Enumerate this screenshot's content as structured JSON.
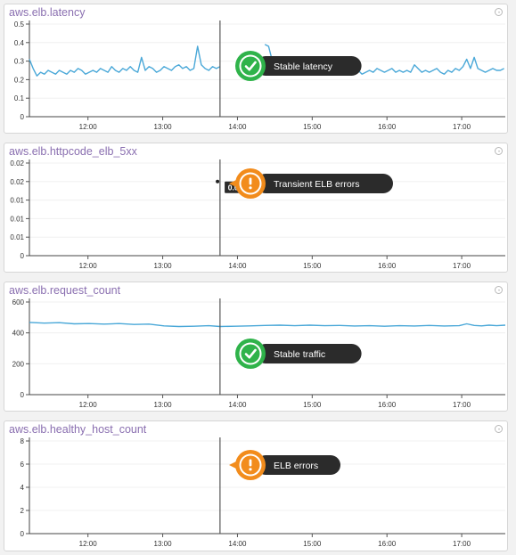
{
  "colors": {
    "series": "#4aa8d8",
    "title": "#8a6fb0",
    "ok": "#2fb34a",
    "warn": "#f28c1c",
    "callout_bg": "#2b2b2b"
  },
  "chart_data": [
    {
      "type": "line",
      "title": "aws.elb.latency",
      "x_ticks": [
        "12:00",
        "13:00",
        "14:00",
        "15:00",
        "16:00",
        "17:00"
      ],
      "y_ticks": [
        "0",
        "0.1",
        "0.2",
        "0.3",
        "0.4",
        "0.5"
      ],
      "ylim": [
        0,
        0.5
      ],
      "xlim": [
        "11:13",
        "17:35"
      ],
      "grid": true,
      "marker_time": "13:46",
      "series": [
        {
          "x": [
            "11:13",
            "11:16",
            "11:19",
            "11:22",
            "11:25",
            "11:28",
            "11:31",
            "11:34",
            "11:37",
            "11:40",
            "11:43",
            "11:46",
            "11:49",
            "11:52",
            "11:55",
            "11:58",
            "12:01",
            "12:04",
            "12:07",
            "12:10",
            "12:13",
            "12:16",
            "12:19",
            "12:22",
            "12:25",
            "12:28",
            "12:31",
            "12:34",
            "12:37",
            "12:40",
            "12:43",
            "12:46",
            "12:49",
            "12:52",
            "12:55",
            "12:58",
            "13:01",
            "13:04",
            "13:07",
            "13:10",
            "13:13",
            "13:16",
            "13:19",
            "13:22",
            "13:25",
            "13:28",
            "13:31",
            "13:34",
            "13:37",
            "13:40",
            "13:43",
            "13:46",
            "14:22",
            "14:25",
            "14:28",
            "14:31",
            "14:34",
            "14:37",
            "14:40",
            "14:43",
            "14:46",
            "14:49",
            "14:52",
            "14:55",
            "14:58",
            "15:01",
            "15:04",
            "15:07",
            "15:10",
            "15:13",
            "15:16",
            "15:19",
            "15:22",
            "15:25",
            "15:28",
            "15:31",
            "15:34",
            "15:37",
            "15:40",
            "15:43",
            "15:46",
            "15:49",
            "15:52",
            "15:55",
            "15:58",
            "16:01",
            "16:04",
            "16:07",
            "16:10",
            "16:13",
            "16:16",
            "16:19",
            "16:22",
            "16:25",
            "16:28",
            "16:31",
            "16:34",
            "16:37",
            "16:40",
            "16:43",
            "16:46",
            "16:49",
            "16:52",
            "16:55",
            "16:58",
            "17:01",
            "17:04",
            "17:07",
            "17:10",
            "17:13",
            "17:16",
            "17:19",
            "17:22",
            "17:25",
            "17:28",
            "17:31",
            "17:34"
          ],
          "values": [
            0.31,
            0.26,
            0.22,
            0.24,
            0.23,
            0.25,
            0.24,
            0.23,
            0.25,
            0.24,
            0.23,
            0.25,
            0.24,
            0.26,
            0.25,
            0.23,
            0.24,
            0.25,
            0.24,
            0.26,
            0.25,
            0.24,
            0.27,
            0.25,
            0.24,
            0.26,
            0.25,
            0.27,
            0.25,
            0.24,
            0.32,
            0.25,
            0.27,
            0.26,
            0.24,
            0.25,
            0.27,
            0.26,
            0.25,
            0.27,
            0.28,
            0.26,
            0.27,
            0.25,
            0.26,
            0.38,
            0.28,
            0.26,
            0.25,
            0.27,
            0.26,
            0.27,
            0.39,
            0.38,
            0.3,
            0.27,
            0.26,
            0.25,
            0.27,
            0.26,
            0.25,
            0.24,
            0.25,
            0.26,
            0.25,
            0.24,
            0.26,
            0.25,
            0.24,
            0.26,
            0.25,
            0.24,
            0.25,
            0.31,
            0.26,
            0.25,
            0.24,
            0.25,
            0.23,
            0.24,
            0.25,
            0.24,
            0.26,
            0.25,
            0.24,
            0.25,
            0.26,
            0.24,
            0.25,
            0.24,
            0.25,
            0.24,
            0.28,
            0.26,
            0.24,
            0.25,
            0.24,
            0.25,
            0.26,
            0.24,
            0.23,
            0.25,
            0.24,
            0.26,
            0.25,
            0.27,
            0.31,
            0.26,
            0.32,
            0.26,
            0.25,
            0.24,
            0.25,
            0.26,
            0.25,
            0.25,
            0.26
          ]
        }
      ],
      "hover_label": "",
      "callout": {
        "kind": "ok",
        "text": "Stable latency"
      }
    },
    {
      "type": "line",
      "title": "aws.elb.httpcode_elb_5xx",
      "x_ticks": [
        "12:00",
        "13:00",
        "14:00",
        "15:00",
        "16:00",
        "17:00"
      ],
      "y_ticks": [
        "0",
        "0.01",
        "0.01",
        "0.01",
        "0.02",
        "0.02"
      ],
      "ylim": [
        0,
        0.025
      ],
      "xlim": [
        "11:13",
        "17:35"
      ],
      "grid": true,
      "marker_time": "13:46",
      "series": [
        {
          "x": [
            "13:44"
          ],
          "values": [
            0.02
          ]
        }
      ],
      "hover_label": "0.02",
      "callout": {
        "kind": "warn",
        "text": "Transient ELB errors"
      }
    },
    {
      "type": "line",
      "title": "aws.elb.request_count",
      "x_ticks": [
        "12:00",
        "13:00",
        "14:00",
        "15:00",
        "16:00",
        "17:00"
      ],
      "y_ticks": [
        "0",
        "200",
        "400",
        "600"
      ],
      "ylim": [
        0,
        680
      ],
      "xlim": [
        "11:13",
        "17:35"
      ],
      "grid": true,
      "marker_time": "13:46",
      "series": [
        {
          "x": [
            "11:13",
            "11:25",
            "11:37",
            "11:49",
            "12:01",
            "12:13",
            "12:25",
            "12:37",
            "12:49",
            "13:01",
            "13:13",
            "13:25",
            "13:37",
            "13:46",
            "13:58",
            "14:10",
            "14:22",
            "14:34",
            "14:46",
            "14:58",
            "15:10",
            "15:22",
            "15:34",
            "15:46",
            "15:58",
            "16:10",
            "16:22",
            "16:34",
            "16:46",
            "16:58",
            "17:04",
            "17:10",
            "17:16",
            "17:22",
            "17:28",
            "17:35"
          ],
          "values": [
            530,
            525,
            528,
            520,
            522,
            518,
            522,
            515,
            518,
            505,
            500,
            502,
            506,
            500,
            502,
            505,
            508,
            510,
            506,
            510,
            506,
            508,
            504,
            506,
            502,
            506,
            504,
            508,
            504,
            506,
            520,
            508,
            505,
            510,
            506,
            510
          ]
        }
      ],
      "hover_label": "",
      "callout": {
        "kind": "ok",
        "text": "Stable traffic"
      }
    },
    {
      "type": "line",
      "title": "aws.elb.healthy_host_count",
      "x_ticks": [
        "12:00",
        "13:00",
        "14:00",
        "15:00",
        "16:00",
        "17:00"
      ],
      "y_ticks": [
        "0",
        "2",
        "4",
        "6",
        "8"
      ],
      "ylim": [
        0,
        8
      ],
      "xlim": [
        "11:13",
        "17:35"
      ],
      "grid": true,
      "marker_time": "13:46",
      "series": [
        {
          "x": [
            "11:13",
            "17:35"
          ],
          "values": [
            6,
            6
          ]
        }
      ],
      "hover_label": "",
      "callout": {
        "kind": "warn",
        "text": "ELB errors"
      }
    }
  ]
}
